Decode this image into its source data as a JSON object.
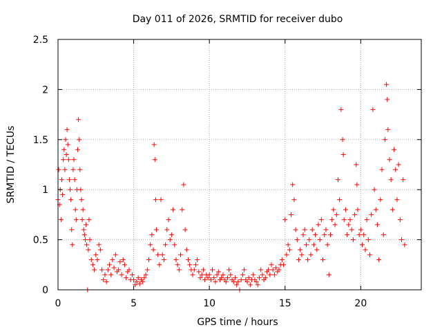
{
  "chart_data": {
    "type": "scatter",
    "title": "Day 011 of 2026, SRMTID for receiver dubo",
    "xlabel": "GPS time / hours",
    "ylabel": "SRMTID / TECUs",
    "xlim": [
      0,
      24
    ],
    "ylim": [
      0,
      2.5
    ],
    "xticks": [
      0,
      5,
      10,
      15,
      20
    ],
    "xtick_labels": [
      "0",
      "5",
      "10",
      "15",
      "20"
    ],
    "yticks": [
      0,
      0.5,
      1,
      1.5,
      2,
      2.5
    ],
    "ytick_labels": [
      "0",
      "0.5",
      "1",
      "1.5",
      "2",
      "2.5"
    ],
    "grid": true,
    "marker": "+",
    "color": "#ff0000",
    "series": [
      {
        "name": "SRMTID",
        "points": [
          [
            0.0,
            0.9
          ],
          [
            0.05,
            1.2
          ],
          [
            0.1,
            0.85
          ],
          [
            0.15,
            1.0
          ],
          [
            0.2,
            0.7
          ],
          [
            0.25,
            1.1
          ],
          [
            0.3,
            0.95
          ],
          [
            0.35,
            1.3
          ],
          [
            0.4,
            1.4
          ],
          [
            0.45,
            1.2
          ],
          [
            0.5,
            1.5
          ],
          [
            0.55,
            1.35
          ],
          [
            0.6,
            1.6
          ],
          [
            0.65,
            1.45
          ],
          [
            0.7,
            1.3
          ],
          [
            0.75,
            1.1
          ],
          [
            0.8,
            1.0
          ],
          [
            0.85,
            0.9
          ],
          [
            0.9,
            0.6
          ],
          [
            0.95,
            0.45
          ],
          [
            1.0,
            1.2
          ],
          [
            1.05,
            1.3
          ],
          [
            1.1,
            1.1
          ],
          [
            1.15,
            0.8
          ],
          [
            1.2,
            0.7
          ],
          [
            1.25,
            1.0
          ],
          [
            1.3,
            1.4
          ],
          [
            1.35,
            1.7
          ],
          [
            1.4,
            1.5
          ],
          [
            1.45,
            1.2
          ],
          [
            1.5,
            1.0
          ],
          [
            1.55,
            0.9
          ],
          [
            1.6,
            0.7
          ],
          [
            1.65,
            0.8
          ],
          [
            1.7,
            0.6
          ],
          [
            1.75,
            0.55
          ],
          [
            1.8,
            0.5
          ],
          [
            1.85,
            0.65
          ],
          [
            1.9,
            0.45
          ],
          [
            1.95,
            0.0
          ],
          [
            2.0,
            0.4
          ],
          [
            2.05,
            0.7
          ],
          [
            2.1,
            0.5
          ],
          [
            2.2,
            0.3
          ],
          [
            2.3,
            0.25
          ],
          [
            2.4,
            0.2
          ],
          [
            2.5,
            0.35
          ],
          [
            2.6,
            0.3
          ],
          [
            2.7,
            0.45
          ],
          [
            2.8,
            0.4
          ],
          [
            2.9,
            0.2
          ],
          [
            3.0,
            0.1
          ],
          [
            3.1,
            0.15
          ],
          [
            3.2,
            0.08
          ],
          [
            3.3,
            0.2
          ],
          [
            3.4,
            0.25
          ],
          [
            3.5,
            0.15
          ],
          [
            3.6,
            0.3
          ],
          [
            3.7,
            0.22
          ],
          [
            3.8,
            0.35
          ],
          [
            3.9,
            0.18
          ],
          [
            4.0,
            0.2
          ],
          [
            4.1,
            0.28
          ],
          [
            4.2,
            0.15
          ],
          [
            4.3,
            0.3
          ],
          [
            4.4,
            0.25
          ],
          [
            4.5,
            0.12
          ],
          [
            4.6,
            0.18
          ],
          [
            4.7,
            0.2
          ],
          [
            4.8,
            0.1
          ],
          [
            4.9,
            0.15
          ],
          [
            5.0,
            0.1
          ],
          [
            5.1,
            0.05
          ],
          [
            5.2,
            0.08
          ],
          [
            5.3,
            0.12
          ],
          [
            5.4,
            0.06
          ],
          [
            5.5,
            0.1
          ],
          [
            5.6,
            0.08
          ],
          [
            5.7,
            0.12
          ],
          [
            5.8,
            0.15
          ],
          [
            5.9,
            0.2
          ],
          [
            6.0,
            0.3
          ],
          [
            6.1,
            0.45
          ],
          [
            6.2,
            0.55
          ],
          [
            6.3,
            0.4
          ],
          [
            6.35,
            1.45
          ],
          [
            6.4,
            1.3
          ],
          [
            6.45,
            0.9
          ],
          [
            6.5,
            0.6
          ],
          [
            6.6,
            0.35
          ],
          [
            6.7,
            0.25
          ],
          [
            6.8,
            0.9
          ],
          [
            6.9,
            0.35
          ],
          [
            7.0,
            0.3
          ],
          [
            7.1,
            0.45
          ],
          [
            7.2,
            0.6
          ],
          [
            7.3,
            0.7
          ],
          [
            7.4,
            0.5
          ],
          [
            7.5,
            0.55
          ],
          [
            7.6,
            0.8
          ],
          [
            7.7,
            0.45
          ],
          [
            7.8,
            0.3
          ],
          [
            7.9,
            0.25
          ],
          [
            8.0,
            0.2
          ],
          [
            8.1,
            0.35
          ],
          [
            8.2,
            0.8
          ],
          [
            8.3,
            1.05
          ],
          [
            8.4,
            0.6
          ],
          [
            8.5,
            0.4
          ],
          [
            8.6,
            0.3
          ],
          [
            8.7,
            0.25
          ],
          [
            8.8,
            0.2
          ],
          [
            8.9,
            0.15
          ],
          [
            9.0,
            0.2
          ],
          [
            9.1,
            0.25
          ],
          [
            9.2,
            0.3
          ],
          [
            9.3,
            0.18
          ],
          [
            9.4,
            0.12
          ],
          [
            9.5,
            0.15
          ],
          [
            9.6,
            0.2
          ],
          [
            9.7,
            0.1
          ],
          [
            9.8,
            0.15
          ],
          [
            9.9,
            0.12
          ],
          [
            10.0,
            0.15
          ],
          [
            10.1,
            0.1
          ],
          [
            10.2,
            0.2
          ],
          [
            10.3,
            0.12
          ],
          [
            10.4,
            0.08
          ],
          [
            10.5,
            0.15
          ],
          [
            10.6,
            0.18
          ],
          [
            10.7,
            0.1
          ],
          [
            10.8,
            0.12
          ],
          [
            10.9,
            0.15
          ],
          [
            11.0,
            0.1
          ],
          [
            11.1,
            0.08
          ],
          [
            11.2,
            0.12
          ],
          [
            11.3,
            0.2
          ],
          [
            11.4,
            0.15
          ],
          [
            11.5,
            0.1
          ],
          [
            11.6,
            0.08
          ],
          [
            11.7,
            0.12
          ],
          [
            11.8,
            0.05
          ],
          [
            11.9,
            0.08
          ],
          [
            12.0,
            0.0
          ],
          [
            12.1,
            0.1
          ],
          [
            12.2,
            0.15
          ],
          [
            12.3,
            0.2
          ],
          [
            12.4,
            0.1
          ],
          [
            12.5,
            0.08
          ],
          [
            12.6,
            0.12
          ],
          [
            12.7,
            0.05
          ],
          [
            12.8,
            0.1
          ],
          [
            12.9,
            0.15
          ],
          [
            13.0,
            0.1
          ],
          [
            13.1,
            0.08
          ],
          [
            13.2,
            0.05
          ],
          [
            13.3,
            0.12
          ],
          [
            13.4,
            0.2
          ],
          [
            13.5,
            0.15
          ],
          [
            13.6,
            0.1
          ],
          [
            13.7,
            0.12
          ],
          [
            13.8,
            0.18
          ],
          [
            13.9,
            0.2
          ],
          [
            14.0,
            0.15
          ],
          [
            14.1,
            0.25
          ],
          [
            14.2,
            0.2
          ],
          [
            14.3,
            0.15
          ],
          [
            14.4,
            0.22
          ],
          [
            14.5,
            0.18
          ],
          [
            14.6,
            0.2
          ],
          [
            14.7,
            0.25
          ],
          [
            14.8,
            0.3
          ],
          [
            14.9,
            0.25
          ],
          [
            15.0,
            0.7
          ],
          [
            15.1,
            0.35
          ],
          [
            15.2,
            0.45
          ],
          [
            15.3,
            0.4
          ],
          [
            15.4,
            0.75
          ],
          [
            15.5,
            1.05
          ],
          [
            15.6,
            0.9
          ],
          [
            15.7,
            0.6
          ],
          [
            15.8,
            0.5
          ],
          [
            15.9,
            0.3
          ],
          [
            16.0,
            0.4
          ],
          [
            16.1,
            0.35
          ],
          [
            16.2,
            0.55
          ],
          [
            16.3,
            0.6
          ],
          [
            16.4,
            0.45
          ],
          [
            16.5,
            0.3
          ],
          [
            16.6,
            0.5
          ],
          [
            16.7,
            0.35
          ],
          [
            16.8,
            0.6
          ],
          [
            16.9,
            0.45
          ],
          [
            17.0,
            0.55
          ],
          [
            17.1,
            0.4
          ],
          [
            17.2,
            0.65
          ],
          [
            17.3,
            0.5
          ],
          [
            17.4,
            0.7
          ],
          [
            17.5,
            0.3
          ],
          [
            17.6,
            0.55
          ],
          [
            17.7,
            0.6
          ],
          [
            17.8,
            0.45
          ],
          [
            17.9,
            0.15
          ],
          [
            18.0,
            0.55
          ],
          [
            18.1,
            0.7
          ],
          [
            18.2,
            0.8
          ],
          [
            18.3,
            0.65
          ],
          [
            18.4,
            0.75
          ],
          [
            18.5,
            1.1
          ],
          [
            18.6,
            0.9
          ],
          [
            18.7,
            1.8
          ],
          [
            18.8,
            1.5
          ],
          [
            18.85,
            1.35
          ],
          [
            18.9,
            0.7
          ],
          [
            19.0,
            0.8
          ],
          [
            19.1,
            0.55
          ],
          [
            19.2,
            0.65
          ],
          [
            19.3,
            0.7
          ],
          [
            19.4,
            0.6
          ],
          [
            19.5,
            0.5
          ],
          [
            19.6,
            0.75
          ],
          [
            19.7,
            1.25
          ],
          [
            19.75,
            1.05
          ],
          [
            19.8,
            0.8
          ],
          [
            19.9,
            0.55
          ],
          [
            20.0,
            0.6
          ],
          [
            20.1,
            0.45
          ],
          [
            20.2,
            0.55
          ],
          [
            20.3,
            0.4
          ],
          [
            20.4,
            0.7
          ],
          [
            20.5,
            0.5
          ],
          [
            20.6,
            0.35
          ],
          [
            20.7,
            0.75
          ],
          [
            20.8,
            1.8
          ],
          [
            20.9,
            1.0
          ],
          [
            21.0,
            0.8
          ],
          [
            21.1,
            0.65
          ],
          [
            21.2,
            0.3
          ],
          [
            21.3,
            0.9
          ],
          [
            21.4,
            1.2
          ],
          [
            21.5,
            0.55
          ],
          [
            21.6,
            1.5
          ],
          [
            21.7,
            2.05
          ],
          [
            21.75,
            1.9
          ],
          [
            21.8,
            1.6
          ],
          [
            21.9,
            1.3
          ],
          [
            22.0,
            1.1
          ],
          [
            22.1,
            0.8
          ],
          [
            22.2,
            1.4
          ],
          [
            22.3,
            1.2
          ],
          [
            22.4,
            0.9
          ],
          [
            22.5,
            1.25
          ],
          [
            22.6,
            0.7
          ],
          [
            22.7,
            0.5
          ],
          [
            22.8,
            1.1
          ],
          [
            22.9,
            0.45
          ]
        ]
      }
    ]
  }
}
